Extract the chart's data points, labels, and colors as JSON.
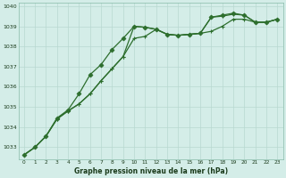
{
  "xlabel": "Graphe pression niveau de la mer (hPa)",
  "bg_color": "#d4ede8",
  "grid_color": "#b8d8d0",
  "line_color": "#2d6e2d",
  "ylim": [
    1032.4,
    1040.15
  ],
  "xlim": [
    -0.5,
    23.5
  ],
  "yticks": [
    1033,
    1034,
    1035,
    1036,
    1037,
    1038,
    1039,
    1040
  ],
  "xticks": [
    0,
    1,
    2,
    3,
    4,
    5,
    6,
    7,
    8,
    9,
    10,
    11,
    12,
    13,
    14,
    15,
    16,
    17,
    18,
    19,
    20,
    21,
    22,
    23
  ],
  "series1": [
    1032.62,
    1033.0,
    1033.55,
    1034.4,
    1034.8,
    1035.15,
    1035.65,
    1036.3,
    1036.9,
    1037.5,
    1038.4,
    1038.5,
    1038.85,
    1038.6,
    1038.55,
    1038.6,
    1038.65,
    1038.75,
    1039.0,
    1039.35,
    1039.35,
    1039.2,
    1039.2,
    1039.35
  ],
  "series2": [
    1032.62,
    1033.0,
    1033.55,
    1034.4,
    1034.8,
    1035.15,
    1035.65,
    1036.3,
    1036.9,
    1037.5,
    1039.0,
    1038.95,
    1038.85,
    1038.6,
    1038.55,
    1038.6,
    1038.65,
    1039.45,
    1039.5,
    1039.6,
    1039.55,
    1039.2,
    1039.2,
    1039.35
  ],
  "series3": [
    1032.62,
    1033.0,
    1033.55,
    1034.45,
    1034.85,
    1035.65,
    1036.6,
    1037.1,
    1037.85,
    1038.4,
    1039.0,
    1038.95,
    1038.85,
    1038.6,
    1038.55,
    1038.6,
    1038.65,
    1039.45,
    1039.55,
    1039.65,
    1039.55,
    1039.2,
    1039.2,
    1039.35
  ]
}
